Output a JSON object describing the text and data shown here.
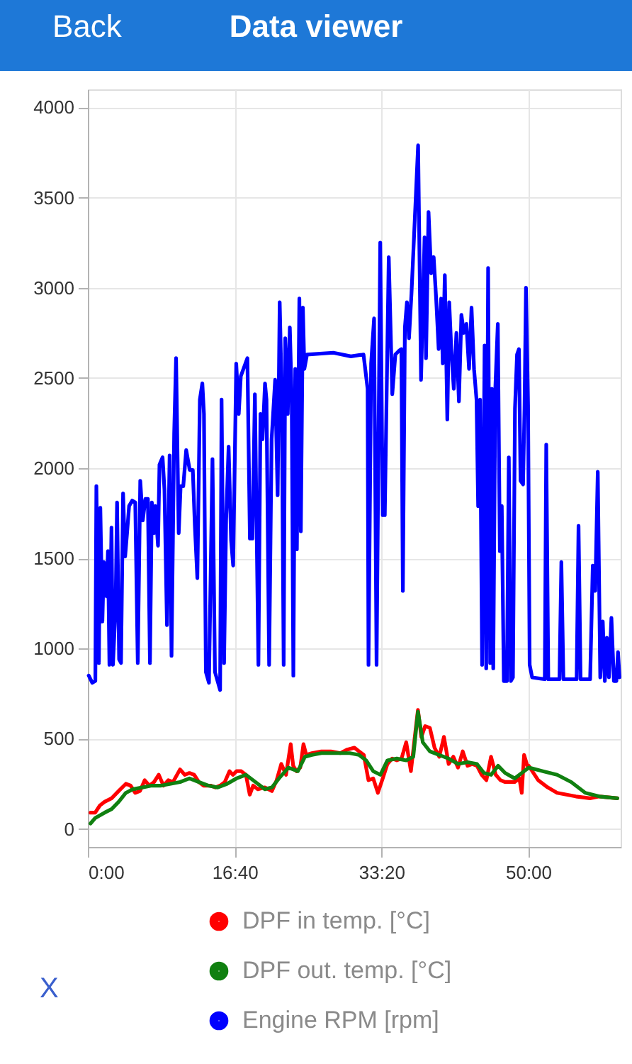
{
  "chart_data": {
    "type": "line",
    "title": "Data viewer",
    "annotations": [
      "Back",
      "X"
    ],
    "xlim": [
      0,
      3630
    ],
    "xticks": [
      {
        "value": 0,
        "label": "0:00"
      },
      {
        "value": 1000,
        "label": "16:40"
      },
      {
        "value": 2000,
        "label": "33:20"
      },
      {
        "value": 3000,
        "label": "50:00"
      }
    ],
    "ylim": [
      -100,
      4100
    ],
    "yticks": [
      0,
      500,
      1000,
      1500,
      2000,
      2500,
      3000,
      3500,
      4000
    ],
    "grid": true,
    "legend": "bottom",
    "series": [
      {
        "name": "DPF in temp. [°C]",
        "color": "#ff0000",
        "x": [
          18,
          50,
          82,
          114,
          162,
          210,
          259,
          291,
          323,
          355,
          387,
          419,
          451,
          483,
          515,
          548,
          580,
          628,
          660,
          692,
          724,
          756,
          788,
          837,
          869,
          901,
          933,
          965,
          988,
          1013,
          1045,
          1077,
          1103,
          1126,
          1158,
          1206,
          1254,
          1286,
          1318,
          1350,
          1382,
          1399,
          1421,
          1447,
          1469,
          1488,
          1527,
          1591,
          1655,
          1720,
          1768,
          1816,
          1848,
          1880,
          1912,
          1944,
          1976,
          2009,
          2041,
          2073,
          2105,
          2137,
          2169,
          2201,
          2233,
          2249,
          2272,
          2298,
          2330,
          2362,
          2394,
          2426,
          2458,
          2490,
          2522,
          2554,
          2587,
          2619,
          2651,
          2683,
          2715,
          2747,
          2779,
          2811,
          2843,
          2876,
          2908,
          2940,
          2956,
          2972,
          2994,
          3004,
          3068,
          3133,
          3197,
          3261,
          3325,
          3421,
          3485,
          3608
        ],
        "values": [
          90,
          90,
          130,
          150,
          170,
          210,
          250,
          240,
          200,
          210,
          270,
          240,
          260,
          300,
          240,
          270,
          260,
          330,
          300,
          310,
          300,
          260,
          240,
          240,
          230,
          240,
          260,
          320,
          300,
          320,
          320,
          300,
          190,
          240,
          220,
          230,
          210,
          270,
          360,
          300,
          470,
          350,
          320,
          340,
          470,
          410,
          420,
          430,
          430,
          420,
          440,
          450,
          430,
          410,
          270,
          280,
          200,
          280,
          360,
          390,
          380,
          390,
          480,
          320,
          550,
          660,
          510,
          570,
          560,
          450,
          400,
          510,
          360,
          400,
          340,
          430,
          350,
          360,
          350,
          300,
          270,
          400,
          300,
          270,
          260,
          260,
          260,
          280,
          200,
          410,
          350,
          350,
          270,
          230,
          200,
          190,
          180,
          170,
          180,
          170
        ]
      },
      {
        "name": "DPF out. temp. [°C]",
        "color": "#108010",
        "x": [
          18,
          50,
          114,
          162,
          210,
          259,
          307,
          371,
          435,
          499,
          564,
          628,
          692,
          756,
          820,
          885,
          949,
          1013,
          1077,
          1142,
          1206,
          1254,
          1302,
          1366,
          1431,
          1479,
          1527,
          1591,
          1655,
          1720,
          1784,
          1848,
          1896,
          1944,
          1993,
          2041,
          2105,
          2169,
          2217,
          2249,
          2282,
          2330,
          2394,
          2458,
          2522,
          2587,
          2651,
          2699,
          2747,
          2795,
          2843,
          2908,
          2956,
          3004,
          3100,
          3197,
          3293,
          3389,
          3485,
          3608
        ],
        "values": [
          30,
          60,
          90,
          110,
          150,
          200,
          220,
          230,
          240,
          240,
          250,
          260,
          280,
          260,
          240,
          230,
          250,
          280,
          300,
          260,
          220,
          230,
          280,
          340,
          320,
          400,
          410,
          420,
          420,
          420,
          420,
          410,
          380,
          320,
          300,
          380,
          390,
          380,
          400,
          650,
          480,
          430,
          410,
          390,
          360,
          370,
          360,
          310,
          300,
          350,
          310,
          280,
          310,
          340,
          320,
          300,
          260,
          200,
          180,
          170
        ]
      },
      {
        "name": "Engine RPM [rpm]",
        "color": "#0000ff",
        "x": [
          6,
          30,
          51,
          58,
          75,
          85,
          99,
          109,
          127,
          137,
          147,
          161,
          171,
          189,
          199,
          213,
          226,
          240,
          254,
          268,
          281,
          302,
          323,
          340,
          357,
          374,
          392,
          409,
          423,
          436,
          450,
          460,
          478,
          488,
          509,
          522,
          539,
          557,
          570,
          588,
          601,
          619,
          632,
          650,
          670,
          694,
          715,
          729,
          746,
          763,
          780,
          791,
          804,
          825,
          849,
          866,
          887,
          901,
          911,
          928,
          942,
          959,
          976,
          990,
          1011,
          1028,
          1042,
          1087,
          1104,
          1121,
          1138,
          1162,
          1176,
          1190,
          1207,
          1217,
          1235,
          1252,
          1276,
          1293,
          1307,
          1321,
          1334,
          1345,
          1362,
          1376,
          1389,
          1400,
          1413,
          1424,
          1441,
          1451,
          1465,
          1475,
          1493,
          1672,
          1792,
          1878,
          1906,
          1912,
          1930,
          1950,
          1967,
          1992,
          2009,
          2023,
          2050,
          2074,
          2095,
          2119,
          2136,
          2146,
          2160,
          2174,
          2188,
          2205,
          2222,
          2250,
          2270,
          2294,
          2304,
          2321,
          2339,
          2356,
          2373,
          2390,
          2407,
          2418,
          2432,
          2449,
          2462,
          2476,
          2493,
          2511,
          2528,
          2545,
          2562,
          2579,
          2597,
          2614,
          2631,
          2648,
          2659,
          2672,
          2686,
          2703,
          2714,
          2727,
          2741,
          2752,
          2762,
          2776,
          2793,
          2807,
          2820,
          2834,
          2855,
          2868,
          2882,
          2896,
          2910,
          2924,
          2937,
          2948,
          2965,
          2975,
          2985,
          2999,
          3010,
          3027,
          3113,
          3123,
          3137,
          3213,
          3226,
          3240,
          3330,
          3343,
          3357,
          3422,
          3440,
          3457,
          3474,
          3491,
          3508,
          3522,
          3536,
          3550,
          3567,
          3584,
          3601,
          3612,
          3622
        ],
        "values": [
          850,
          810,
          820,
          1900,
          920,
          1780,
          1150,
          1480,
          1290,
          1540,
          910,
          1670,
          910,
          1230,
          1810,
          940,
          920,
          1860,
          1510,
          1650,
          1790,
          1820,
          1810,
          920,
          1930,
          1710,
          1830,
          1830,
          920,
          1810,
          1640,
          1790,
          1570,
          2020,
          2060,
          1880,
          1130,
          2070,
          960,
          2190,
          2610,
          1640,
          1900,
          1900,
          2100,
          1990,
          1990,
          1680,
          1390,
          2380,
          2470,
          2300,
          870,
          810,
          2050,
          870,
          810,
          770,
          2380,
          920,
          1710,
          2120,
          1600,
          1460,
          2580,
          2300,
          2510,
          2610,
          1610,
          1610,
          2410,
          910,
          2300,
          2160,
          2470,
          2380,
          910,
          2160,
          2490,
          1850,
          2920,
          2410,
          910,
          2720,
          2300,
          2780,
          2380,
          850,
          2550,
          1550,
          2940,
          1650,
          2890,
          2550,
          2630,
          2640,
          2620,
          2630,
          2440,
          910,
          2580,
          2830,
          910,
          3250,
          1740,
          1740,
          3170,
          2410,
          2630,
          2650,
          2660,
          1320,
          2780,
          2920,
          2720,
          2970,
          3280,
          3790,
          2490,
          3280,
          2610,
          3420,
          3080,
          3170,
          2940,
          2660,
          2940,
          2580,
          3070,
          2270,
          2920,
          2660,
          2440,
          2750,
          2370,
          2850,
          2750,
          2800,
          2550,
          2890,
          2550,
          2380,
          1790,
          2380,
          910,
          2680,
          890,
          3110,
          920,
          2440,
          890,
          2440,
          2800,
          1540,
          1790,
          820,
          820,
          2060,
          820,
          840,
          2330,
          2630,
          2660,
          1930,
          1910,
          2330,
          3000,
          2350,
          910,
          840,
          830,
          2130,
          830,
          830,
          1480,
          830,
          830,
          1680,
          830,
          830,
          1460,
          1320,
          1980,
          840,
          1150,
          820,
          1060,
          840,
          1170,
          820,
          820,
          980,
          840
        ]
      }
    ]
  }
}
